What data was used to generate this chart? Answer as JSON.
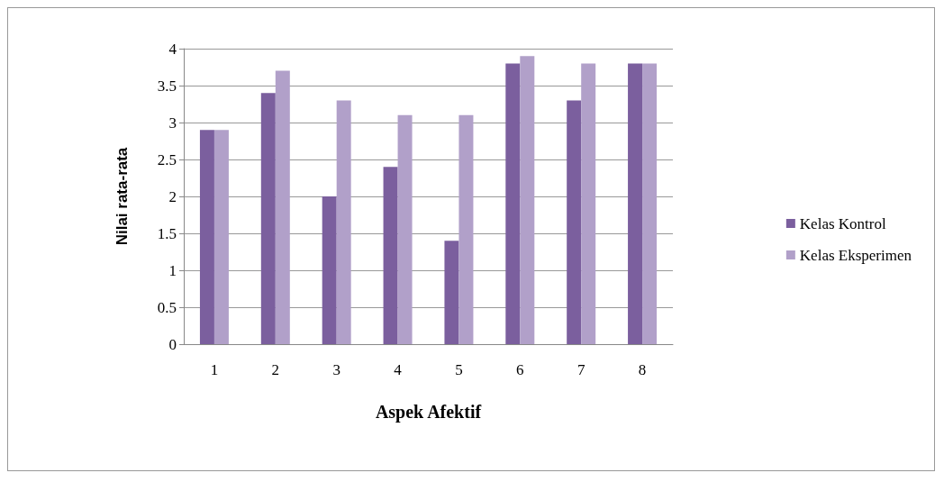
{
  "chart_data": {
    "type": "bar",
    "xlabel": "Aspek Afektif",
    "ylabel": "Nilai rata-rata",
    "categories": [
      "1",
      "2",
      "3",
      "4",
      "5",
      "6",
      "7",
      "8"
    ],
    "series": [
      {
        "name": "Kelas Kontrol",
        "color": "#7b5f9e",
        "values": [
          2.9,
          3.4,
          2.0,
          2.4,
          1.4,
          3.8,
          3.3,
          3.8
        ]
      },
      {
        "name": "Kelas Eksperimen",
        "color": "#b1a0c9",
        "values": [
          2.9,
          3.7,
          3.3,
          3.1,
          3.1,
          3.9,
          3.8,
          3.8
        ]
      }
    ],
    "ylim": [
      0,
      4
    ],
    "yticks": [
      0,
      0.5,
      1,
      1.5,
      2,
      2.5,
      3,
      3.5,
      4
    ],
    "grid": "y",
    "legend": "right"
  }
}
